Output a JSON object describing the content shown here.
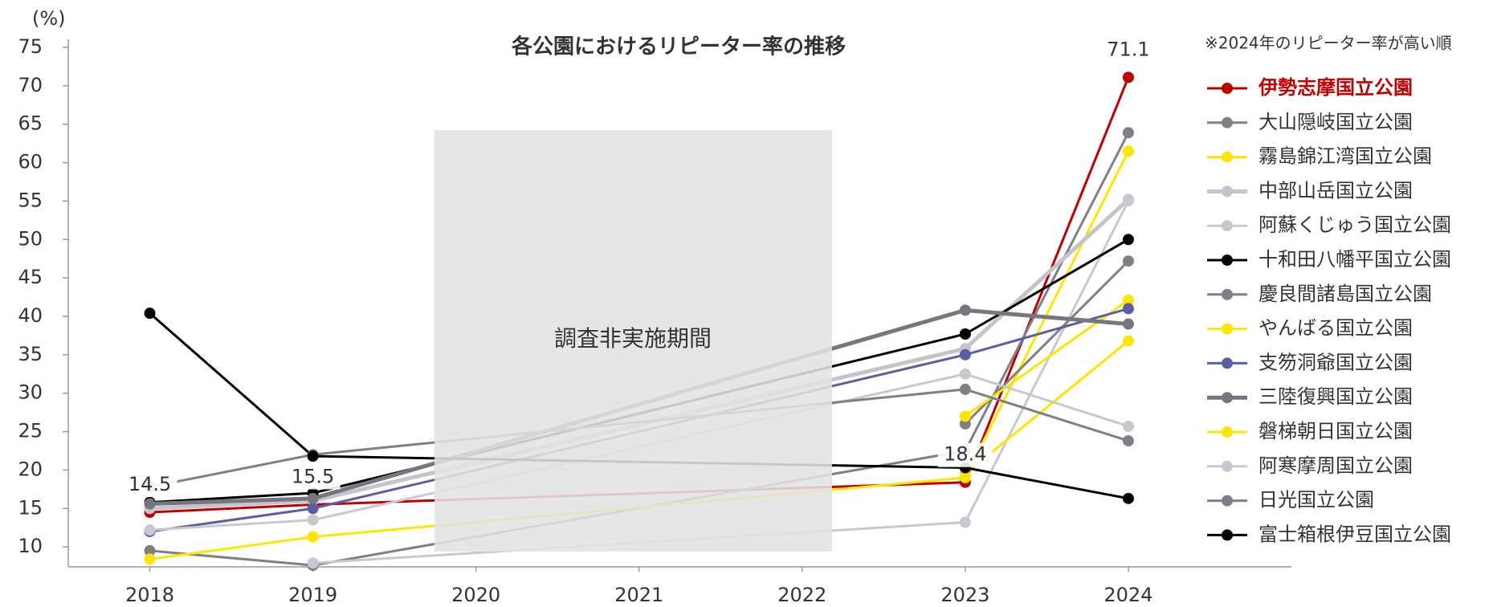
{
  "chart_data": {
    "type": "line",
    "title": "各公園におけるリピーター率の推移",
    "y_unit": "(%)",
    "note": "※2024年のリピーター率が高い順",
    "annotation": "調査非実施期間",
    "x": [
      2018,
      2019,
      2023,
      2024
    ],
    "xlim": [
      2017.5,
      2025
    ],
    "xticks": [
      2018,
      2019,
      2020,
      2021,
      2022,
      2023,
      2024
    ],
    "ylim": [
      7.4,
      75
    ],
    "yticks": [
      10,
      15,
      20,
      25,
      30,
      35,
      40,
      45,
      50,
      55,
      60,
      65,
      70,
      75
    ],
    "legend": "right",
    "series": [
      {
        "name": "伊勢志摩国立公園",
        "color": "#c00000",
        "values": [
          14.5,
          15.5,
          18.4,
          71.1
        ],
        "value_labels": [
          "14.5",
          "15.5",
          "18.4",
          "71.1"
        ],
        "highlight": true
      },
      {
        "name": "大山隠岐国立公園",
        "color": "#7f7f87",
        "values": [
          9.5,
          7.6,
          22.5,
          63.9
        ]
      },
      {
        "name": "霧島錦江湾国立公園",
        "color": "#ffe500",
        "values": [
          8.4,
          11.3,
          19.0,
          61.5
        ]
      },
      {
        "name": "中部山岳国立公園",
        "color": "#c4c4cc",
        "values": [
          15.0,
          16.0,
          35.8,
          55.2
        ],
        "thick": true
      },
      {
        "name": "阿蘇くじゅう国立公園",
        "color": "#c8c8d0",
        "values": [
          null,
          7.9,
          13.2,
          55.0
        ]
      },
      {
        "name": "十和田八幡平国立公園",
        "color": "#000000",
        "values": [
          15.8,
          17.0,
          37.7,
          50.0
        ]
      },
      {
        "name": "慶良間諸島国立公園",
        "color": "#7f7f87",
        "values": [
          null,
          null,
          26.0,
          47.2
        ]
      },
      {
        "name": "やんばる国立公園",
        "color": "#ffe500",
        "values": [
          null,
          null,
          27.0,
          42.1
        ]
      },
      {
        "name": "支笏洞爺国立公園",
        "color": "#5b5ea6",
        "values": [
          12.0,
          15.0,
          35.0,
          41.0
        ]
      },
      {
        "name": "三陸復興国立公園",
        "color": "#76767e",
        "values": [
          15.6,
          16.3,
          40.8,
          39.0
        ],
        "thick": true
      },
      {
        "name": "磐梯朝日国立公園",
        "color": "#ffe500",
        "values": [
          null,
          null,
          19.5,
          36.8
        ]
      },
      {
        "name": "阿寒摩周国立公園",
        "color": "#c8c8d0",
        "values": [
          12.2,
          13.5,
          32.5,
          25.7
        ]
      },
      {
        "name": "日光国立公園",
        "color": "#7f7f87",
        "values": [
          17.8,
          22.0,
          30.5,
          23.8
        ]
      },
      {
        "name": "富士箱根伊豆国立公園",
        "color": "#000000",
        "values": [
          40.4,
          21.8,
          20.3,
          16.3
        ]
      }
    ]
  }
}
